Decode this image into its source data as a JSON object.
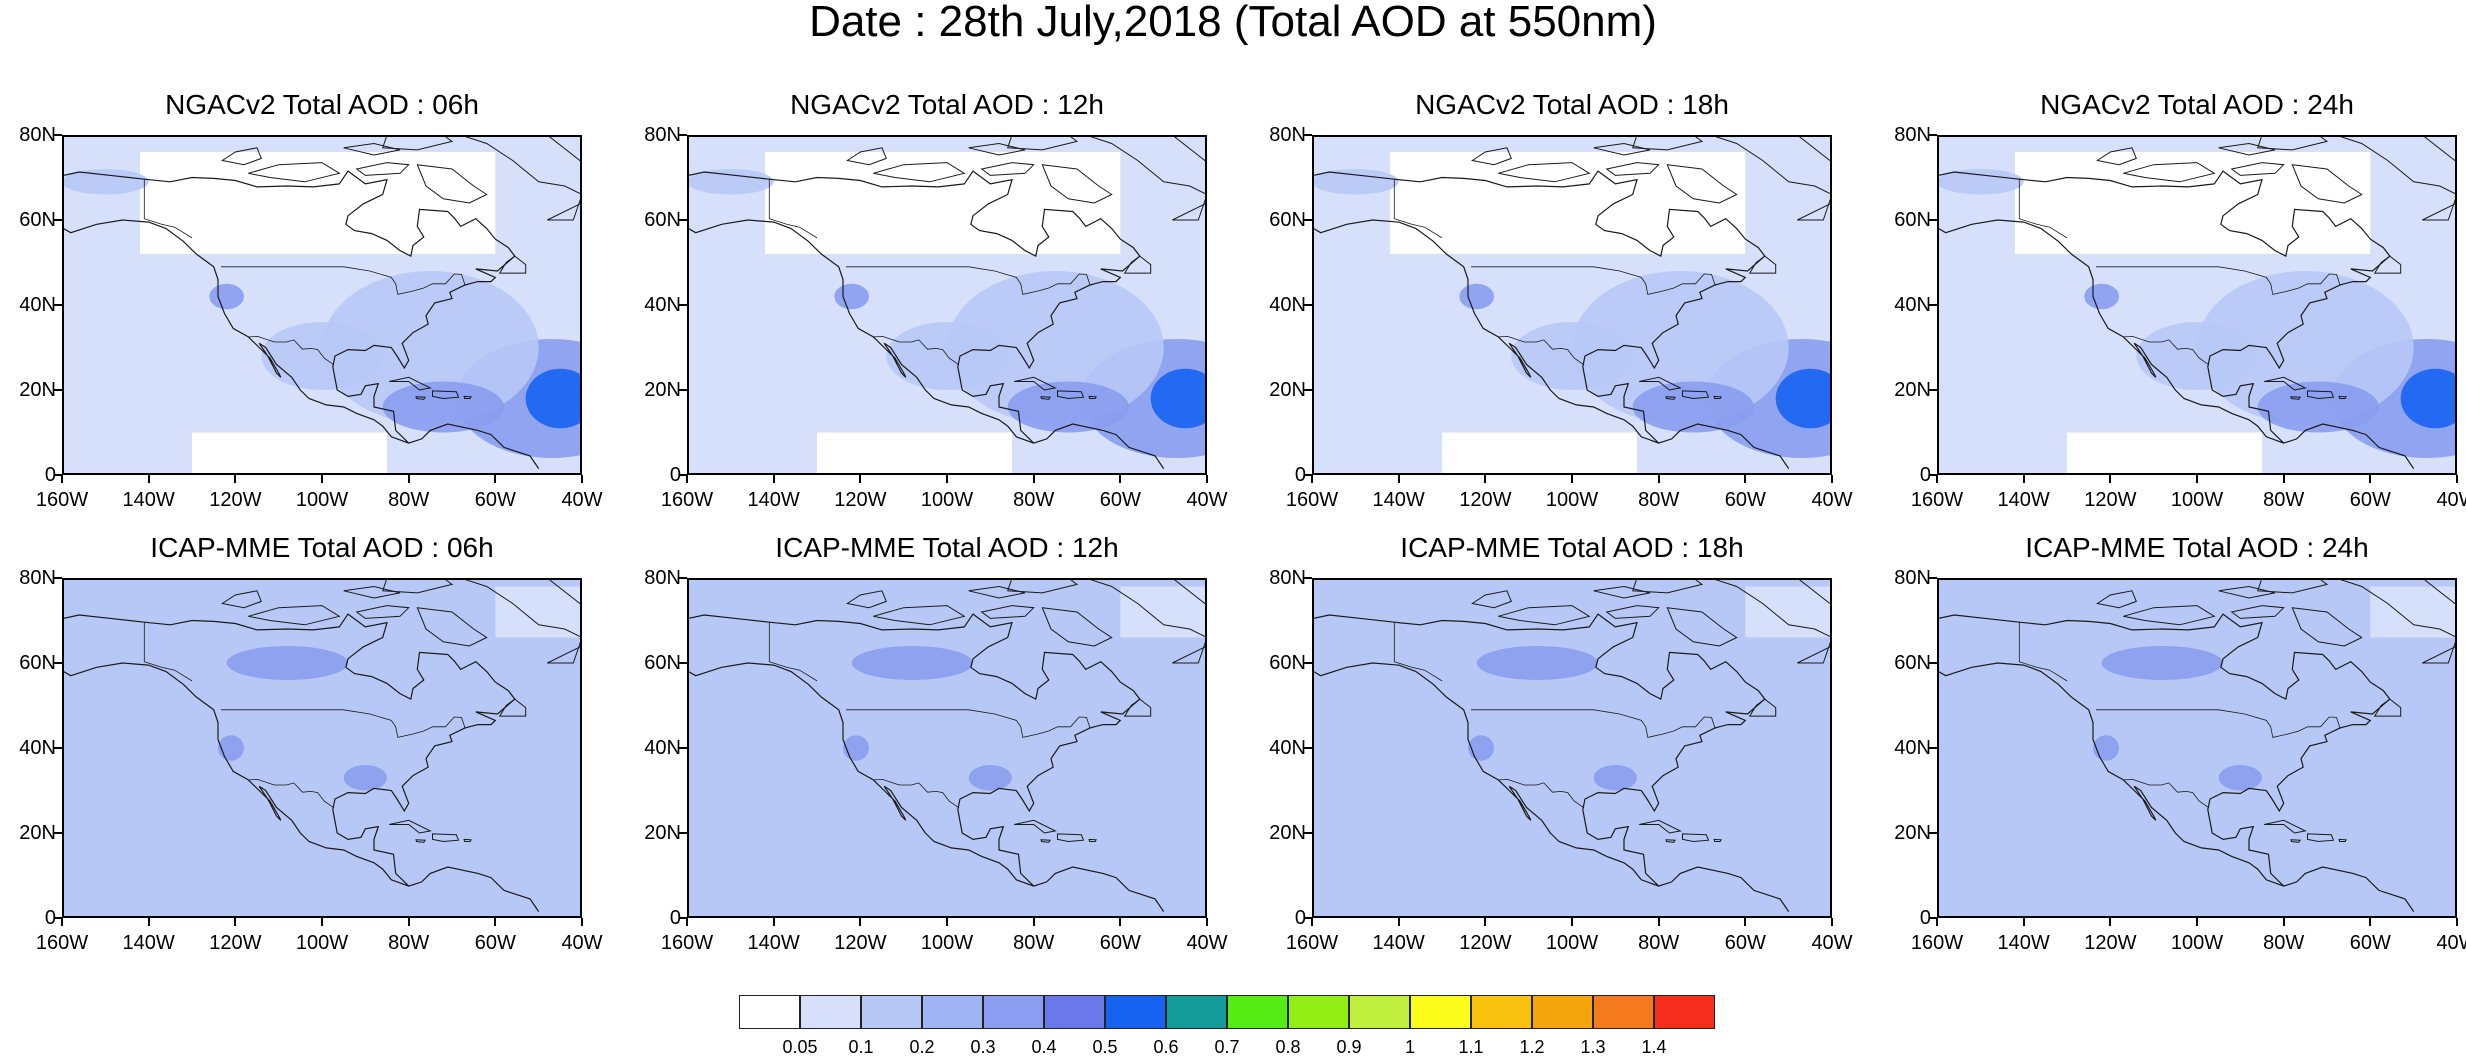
{
  "title": "Date : 28th July,2018 (Total AOD at 550nm)",
  "lat_ticks": [
    "80N",
    "60N",
    "40N",
    "20N",
    "0"
  ],
  "lon_ticks": [
    "160W",
    "140W",
    "120W",
    "100W",
    "80W",
    "60W",
    "40W"
  ],
  "panels": [
    {
      "title": "NGACv2 Total AOD : 06h",
      "model": "NGACv2",
      "hour": "06h"
    },
    {
      "title": "NGACv2 Total AOD : 12h",
      "model": "NGACv2",
      "hour": "12h"
    },
    {
      "title": "NGACv2 Total AOD : 18h",
      "model": "NGACv2",
      "hour": "18h"
    },
    {
      "title": "NGACv2 Total AOD : 24h",
      "model": "NGACv2",
      "hour": "24h"
    },
    {
      "title": "ICAP-MME Total AOD : 06h",
      "model": "ICAP-MME",
      "hour": "06h"
    },
    {
      "title": "ICAP-MME Total AOD : 12h",
      "model": "ICAP-MME",
      "hour": "12h"
    },
    {
      "title": "ICAP-MME Total AOD : 18h",
      "model": "ICAP-MME",
      "hour": "18h"
    },
    {
      "title": "ICAP-MME Total AOD : 24h",
      "model": "ICAP-MME",
      "hour": "24h"
    }
  ],
  "colorbar": {
    "labels": [
      "0.05",
      "0.1",
      "0.2",
      "0.3",
      "0.4",
      "0.5",
      "0.6",
      "0.7",
      "0.8",
      "0.9",
      "1",
      "1.1",
      "1.2",
      "1.3",
      "1.4"
    ],
    "colors": [
      "#ffffff",
      "#d6e0fb",
      "#b8c8f6",
      "#a0b4f3",
      "#8a9df0",
      "#6b78ea",
      "#1763f1",
      "#139c99",
      "#55ec13",
      "#92ee14",
      "#c1ef3d",
      "#fcfc1b",
      "#f9c20f",
      "#f6a60d",
      "#f57a1d",
      "#f52e1d"
    ]
  },
  "colors": {
    "land_outline": "#1a1a1a",
    "field_low": "#d6e0fb",
    "field_mid": "#b8c8f6",
    "field_high": "#8a9df0",
    "field_peak": "#1763f1"
  }
}
